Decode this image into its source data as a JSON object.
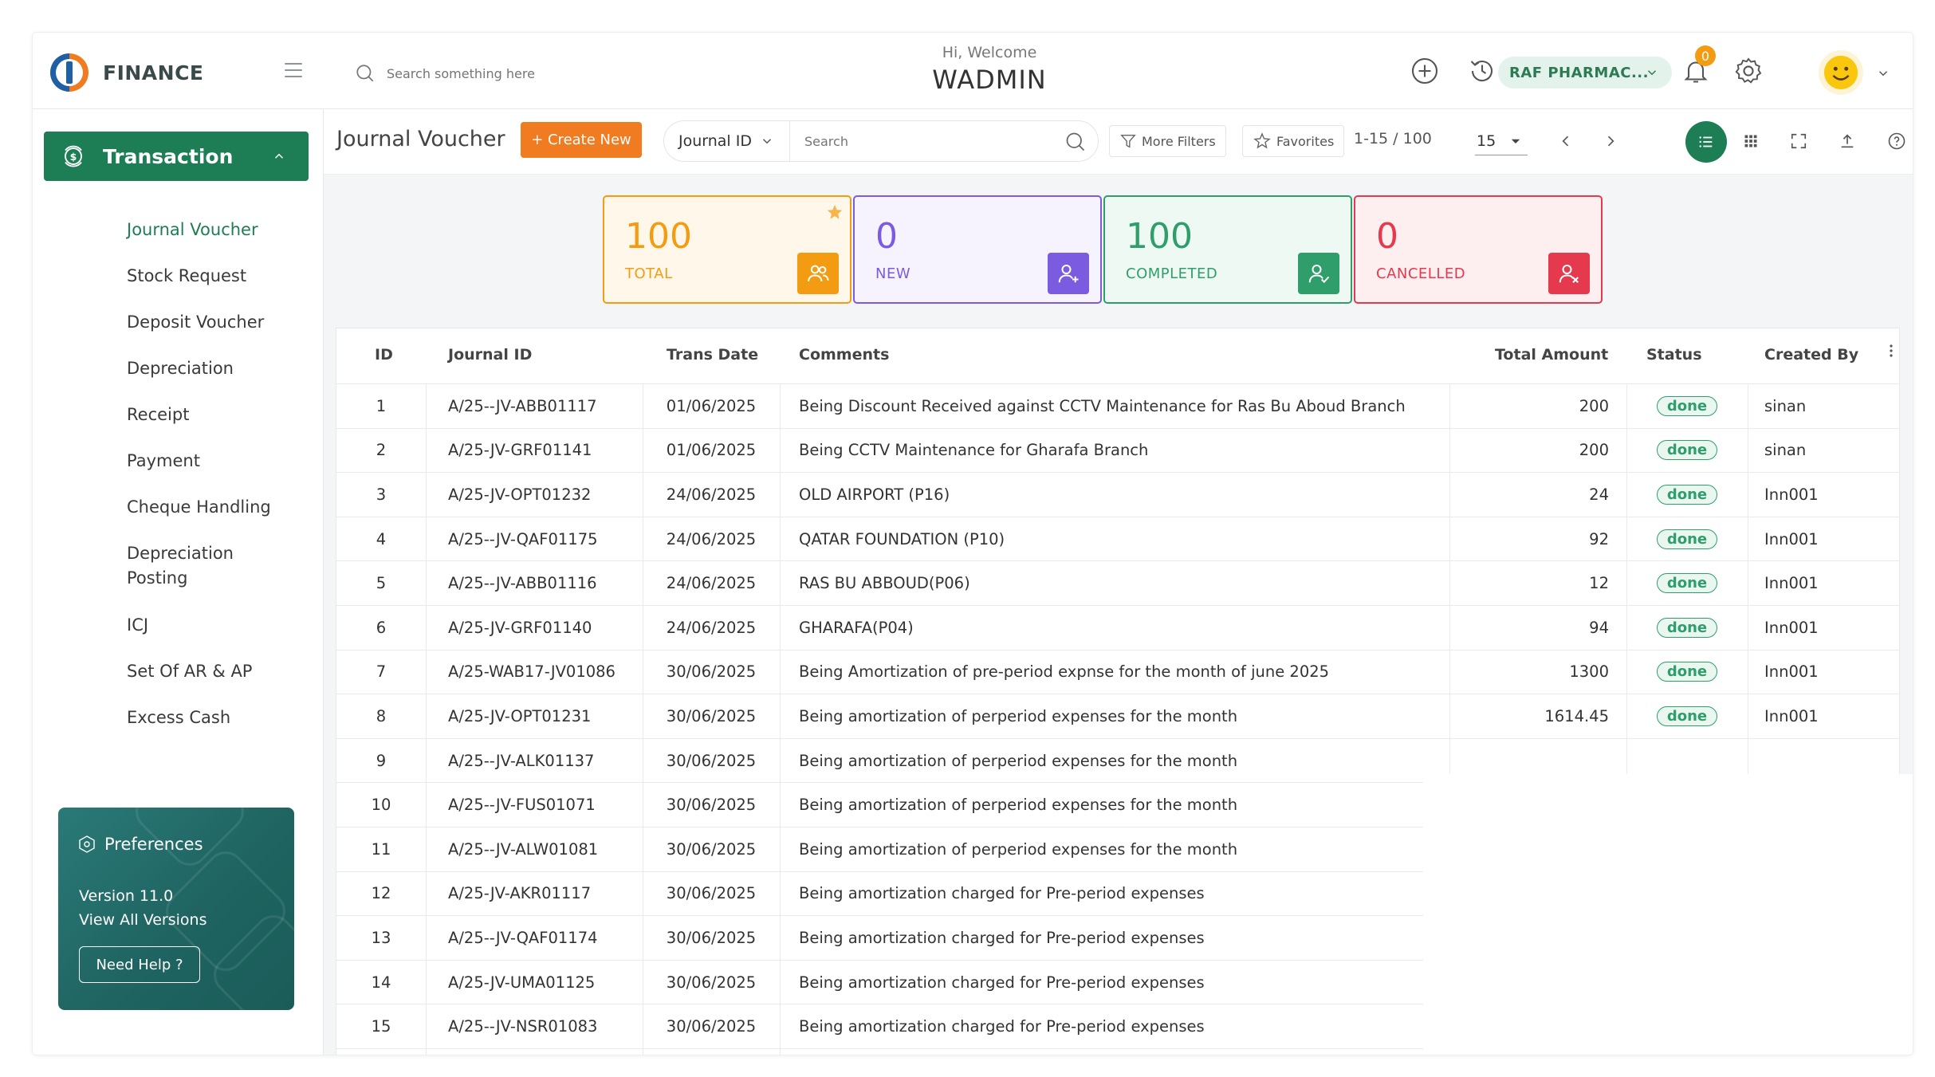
{
  "header": {
    "brand": "FINANCE",
    "search_placeholder": "Search something here",
    "greeting": "Hi, Welcome",
    "username": "WADMIN",
    "organization": "RAF PHARMAC...",
    "notification_count": "0"
  },
  "sidebar": {
    "section_label": "Transaction",
    "items": [
      {
        "label": "Journal Voucher"
      },
      {
        "label": "Stock Request"
      },
      {
        "label": "Deposit Voucher"
      },
      {
        "label": "Depreciation"
      },
      {
        "label": "Receipt"
      },
      {
        "label": "Payment"
      },
      {
        "label": "Cheque Handling"
      },
      {
        "label": "Depreciation Posting"
      },
      {
        "label": "ICJ"
      },
      {
        "label": "Set Of AR & AP"
      },
      {
        "label": "Excess Cash"
      }
    ],
    "preferences": {
      "title": "Preferences",
      "version": "Version 11.0",
      "view_versions": "View All Versions",
      "help": "Need Help ?"
    }
  },
  "toolbar": {
    "title": "Journal Voucher",
    "create_label": "+ Create New",
    "filter_field": "Journal ID",
    "search_placeholder": "Search",
    "more_filters": "More Filters",
    "favorites": "Favorites",
    "pagination": "1-15 / 100",
    "page_size": "15"
  },
  "stats": [
    {
      "value": "100",
      "label": "TOTAL",
      "color": "#f39c12"
    },
    {
      "value": "0",
      "label": "NEW",
      "color": "#7b5be0"
    },
    {
      "value": "100",
      "label": "COMPLETED",
      "color": "#2f9e6b"
    },
    {
      "value": "0",
      "label": "CANCELLED",
      "color": "#e5394d"
    }
  ],
  "table": {
    "columns": [
      "ID",
      "Journal ID",
      "Trans Date",
      "Comments",
      "Total Amount",
      "Status",
      "Created By"
    ],
    "rows": [
      {
        "id": "1",
        "journal_id": "A/25--JV-ABB01117",
        "date": "01/06/2025",
        "comments": "Being Discount Received against CCTV Maintenance for Ras Bu Aboud Branch",
        "amount": "200",
        "status": "done",
        "created_by": "sinan"
      },
      {
        "id": "2",
        "journal_id": "A/25-JV-GRF01141",
        "date": "01/06/2025",
        "comments": "Being CCTV Maintenance for Gharafa Branch",
        "amount": "200",
        "status": "done",
        "created_by": "sinan"
      },
      {
        "id": "3",
        "journal_id": "A/25-JV-OPT01232",
        "date": "24/06/2025",
        "comments": "OLD AIRPORT (P16)",
        "amount": "24",
        "status": "done",
        "created_by": "Inn001"
      },
      {
        "id": "4",
        "journal_id": "A/25--JV-QAF01175",
        "date": "24/06/2025",
        "comments": "QATAR FOUNDATION (P10)",
        "amount": "92",
        "status": "done",
        "created_by": "Inn001"
      },
      {
        "id": "5",
        "journal_id": "A/25--JV-ABB01116",
        "date": "24/06/2025",
        "comments": "RAS BU ABBOUD(P06)",
        "amount": "12",
        "status": "done",
        "created_by": "Inn001"
      },
      {
        "id": "6",
        "journal_id": "A/25-JV-GRF01140",
        "date": "24/06/2025",
        "comments": "GHARAFA(P04)",
        "amount": "94",
        "status": "done",
        "created_by": "Inn001"
      },
      {
        "id": "7",
        "journal_id": "A/25-WAB17-JV01086",
        "date": "30/06/2025",
        "comments": "Being Amortization of pre-period expnse for the month of june 2025",
        "amount": "1300",
        "status": "done",
        "created_by": "Inn001"
      },
      {
        "id": "8",
        "journal_id": "A/25-JV-OPT01231",
        "date": "30/06/2025",
        "comments": "Being amortization of perperiod expenses for the month",
        "amount": "1614.45",
        "status": "done",
        "created_by": "Inn001"
      },
      {
        "id": "9",
        "journal_id": "A/25--JV-ALK01137",
        "date": "30/06/2025",
        "comments": "Being amortization of perperiod expenses for the month",
        "amount": "",
        "status": "",
        "created_by": ""
      },
      {
        "id": "10",
        "journal_id": "A/25--JV-FUS01071",
        "date": "30/06/2025",
        "comments": "Being amortization of perperiod expenses for the month",
        "amount": "",
        "status": "",
        "created_by": ""
      },
      {
        "id": "11",
        "journal_id": "A/25--JV-ALW01081",
        "date": "30/06/2025",
        "comments": "Being amortization of perperiod expenses for the month",
        "amount": "",
        "status": "",
        "created_by": ""
      },
      {
        "id": "12",
        "journal_id": "A/25-JV-AKR01117",
        "date": "30/06/2025",
        "comments": "Being amortization charged for Pre-period expenses",
        "amount": "",
        "status": "",
        "created_by": ""
      },
      {
        "id": "13",
        "journal_id": "A/25--JV-QAF01174",
        "date": "30/06/2025",
        "comments": "Being amortization charged for Pre-period expenses",
        "amount": "",
        "status": "",
        "created_by": ""
      },
      {
        "id": "14",
        "journal_id": "A/25-JV-UMA01125",
        "date": "30/06/2025",
        "comments": "Being amortization charged for Pre-period expenses",
        "amount": "",
        "status": "",
        "created_by": ""
      },
      {
        "id": "15",
        "journal_id": "A/25--JV-NSR01083",
        "date": "30/06/2025",
        "comments": "Being amortization charged for Pre-period expenses",
        "amount": "",
        "status": "",
        "created_by": ""
      }
    ]
  }
}
